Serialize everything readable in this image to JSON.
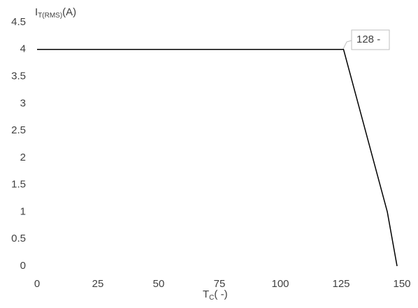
{
  "chart_data": {
    "type": "line",
    "y_label": {
      "main": "I",
      "sub": "T(RMS)",
      "suffix": "(A)"
    },
    "x_label": {
      "main": "T",
      "sub": "C",
      "suffix": "( -)"
    },
    "annotation": "128 -",
    "x": [
      0,
      126,
      144,
      148
    ],
    "series": [
      {
        "color": "#000000",
        "values": [
          4,
          4,
          1,
          0
        ]
      }
    ],
    "xlim": [
      0,
      150
    ],
    "xticks": [
      0,
      25,
      50,
      75,
      100,
      125,
      150
    ],
    "ylim": [
      0,
      4.5
    ],
    "yticks": [
      0,
      0.5,
      1,
      1.5,
      2,
      2.5,
      3,
      3.5,
      4,
      4.5
    ],
    "grid": false
  }
}
